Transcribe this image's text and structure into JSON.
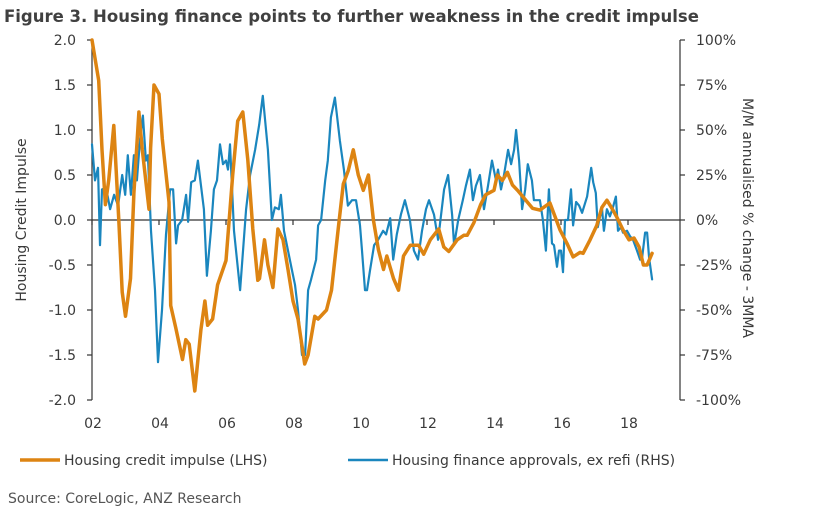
{
  "chart_data": {
    "type": "line",
    "title": "Figure 3. Housing finance points to further weakness in the credit impulse",
    "source": "Source: CoreLogic, ANZ Research",
    "ylabel_left": "Housing Credit Impulse",
    "ylabel_right": "M/M annualised % change - 3MMA",
    "xlim": [
      2002,
      2019.5
    ],
    "ylim_left": [
      -2.0,
      2.0
    ],
    "ylim_right": [
      -100,
      100
    ],
    "x_ticks": [
      "02",
      "04",
      "06",
      "08",
      "10",
      "12",
      "14",
      "16",
      "18"
    ],
    "x_tick_values": [
      2002,
      2004,
      2006,
      2008,
      2010,
      2012,
      2014,
      2016,
      2018
    ],
    "y_left_ticks": [
      "2.0",
      "1.5",
      "1.0",
      "0.5",
      "0.0",
      "-0.5",
      "-1.0",
      "-1.5",
      "-2.0"
    ],
    "y_right_ticks": [
      "100%",
      "75%",
      "50%",
      "25%",
      "0%",
      "-25%",
      "-50%",
      "-75%",
      "-100%"
    ],
    "grid": false,
    "legend_placement": "bottom",
    "series": [
      {
        "name": "Housing credit impulse (LHS)",
        "axis": "left",
        "color": "#DD8412",
        "x": [
          2002.0,
          2002.2,
          2002.3,
          2002.4,
          2002.5,
          2002.65,
          2002.8,
          2002.9,
          2003.0,
          2003.15,
          2003.25,
          2003.4,
          2003.5,
          2003.7,
          2003.75,
          2003.85,
          2004.0,
          2004.1,
          2004.3,
          2004.35,
          2004.5,
          2004.7,
          2004.8,
          2004.9,
          2005.07,
          2005.25,
          2005.37,
          2005.45,
          2005.6,
          2005.75,
          2006.0,
          2006.2,
          2006.35,
          2006.5,
          2006.65,
          2006.8,
          2006.95,
          2007.0,
          2007.15,
          2007.25,
          2007.4,
          2007.55,
          2007.7,
          2007.85,
          2008.0,
          2008.15,
          2008.35,
          2008.45,
          2008.65,
          2008.75,
          2009.0,
          2009.15,
          2009.35,
          2009.5,
          2009.65,
          2009.8,
          2009.95,
          2010.1,
          2010.25,
          2010.4,
          2010.55,
          2010.7,
          2010.8,
          2011.0,
          2011.15,
          2011.3,
          2011.5,
          2011.75,
          2011.9,
          2012.1,
          2012.35,
          2012.5,
          2012.65,
          2012.9,
          2013.1,
          2013.2,
          2013.4,
          2013.6,
          2013.75,
          2014.0,
          2014.1,
          2014.25,
          2014.4,
          2014.55,
          2014.7,
          2014.95,
          2015.15,
          2015.37,
          2015.67,
          2015.97,
          2016.18,
          2016.36,
          2016.57,
          2016.66,
          2016.87,
          2017.07,
          2017.22,
          2017.37,
          2017.52,
          2017.67,
          2017.85,
          2018.03,
          2018.18,
          2018.33,
          2018.46,
          2018.57,
          2018.72
        ],
        "y": [
          2.0,
          1.55,
          0.78,
          0.17,
          0.45,
          1.05,
          0,
          -0.8,
          -1.07,
          -0.65,
          0.3,
          1.2,
          0.78,
          0.12,
          0.8,
          1.5,
          1.4,
          0.9,
          0.2,
          -0.95,
          -1.2,
          -1.55,
          -1.33,
          -1.38,
          -1.9,
          -1.22,
          -0.9,
          -1.17,
          -1.1,
          -0.72,
          -0.45,
          0.5,
          1.1,
          1.2,
          0.67,
          -0.1,
          -0.67,
          -0.65,
          -0.22,
          -0.5,
          -0.75,
          -0.1,
          -0.22,
          -0.55,
          -0.9,
          -1.1,
          -1.6,
          -1.5,
          -1.07,
          -1.1,
          -1.0,
          -0.78,
          -0.1,
          0.4,
          0.55,
          0.78,
          0.5,
          0.33,
          0.5,
          0,
          -0.33,
          -0.55,
          -0.4,
          -0.65,
          -0.78,
          -0.4,
          -0.28,
          -0.28,
          -0.38,
          -0.22,
          -0.1,
          -0.3,
          -0.35,
          -0.22,
          -0.17,
          -0.17,
          -0.03,
          0.17,
          0.28,
          0.33,
          0.5,
          0.44,
          0.53,
          0.39,
          0.33,
          0.22,
          0.13,
          0.11,
          0.19,
          -0.11,
          -0.26,
          -0.41,
          -0.36,
          -0.37,
          -0.22,
          -0.06,
          0.14,
          0.22,
          0.13,
          0.03,
          -0.11,
          -0.22,
          -0.2,
          -0.3,
          -0.5,
          -0.5,
          -0.37
        ]
      },
      {
        "name": "Housing finance approvals, ex refi (RHS)",
        "axis": "right",
        "color": "#1A86BE",
        "x": [
          2002.0,
          2002.09,
          2002.18,
          2002.24,
          2002.3,
          2002.42,
          2002.54,
          2002.66,
          2002.78,
          2002.9,
          2002.99,
          2003.07,
          2003.16,
          2003.25,
          2003.34,
          2003.43,
          2003.52,
          2003.61,
          2003.67,
          2003.76,
          2003.88,
          2003.97,
          2004.09,
          2004.21,
          2004.33,
          2004.42,
          2004.51,
          2004.57,
          2004.69,
          2004.81,
          2004.87,
          2004.96,
          2005.07,
          2005.16,
          2005.34,
          2005.43,
          2005.55,
          2005.64,
          2005.73,
          2005.82,
          2005.91,
          2006.0,
          2006.06,
          2006.12,
          2006.24,
          2006.42,
          2006.6,
          2006.72,
          2006.87,
          2006.99,
          2007.1,
          2007.25,
          2007.37,
          2007.46,
          2007.58,
          2007.64,
          2007.73,
          2007.85,
          2007.97,
          2008.06,
          2008.15,
          2008.27,
          2008.36,
          2008.45,
          2008.54,
          2008.69,
          2008.75,
          2008.84,
          2008.96,
          2009.04,
          2009.13,
          2009.25,
          2009.4,
          2009.52,
          2009.64,
          2009.76,
          2009.88,
          2010.0,
          2010.06,
          2010.15,
          2010.21,
          2010.3,
          2010.42,
          2010.54,
          2010.69,
          2010.78,
          2010.9,
          2010.99,
          2011.1,
          2011.22,
          2011.34,
          2011.49,
          2011.61,
          2011.73,
          2011.85,
          2011.97,
          2012.06,
          2012.21,
          2012.33,
          2012.42,
          2012.51,
          2012.63,
          2012.75,
          2012.81,
          2012.93,
          2013.07,
          2013.16,
          2013.28,
          2013.37,
          2013.46,
          2013.58,
          2013.7,
          2013.82,
          2013.94,
          2014.06,
          2014.12,
          2014.21,
          2014.3,
          2014.42,
          2014.51,
          2014.6,
          2014.66,
          2014.75,
          2014.84,
          2014.93,
          2015.01,
          2015.13,
          2015.19,
          2015.37,
          2015.46,
          2015.55,
          2015.64,
          2015.73,
          2015.79,
          2015.88,
          2015.94,
          2016.0,
          2016.06,
          2016.12,
          2016.21,
          2016.3,
          2016.36,
          2016.45,
          2016.54,
          2016.63,
          2016.78,
          2016.9,
          2016.96,
          2017.04,
          2017.1,
          2017.22,
          2017.28,
          2017.37,
          2017.46,
          2017.55,
          2017.64,
          2017.7,
          2017.79,
          2017.85,
          2017.97,
          2018.06,
          2018.15,
          2018.27,
          2018.36,
          2018.42,
          2018.51,
          2018.57,
          2018.63,
          2018.72
        ],
        "y": [
          42,
          22,
          29,
          -14,
          17,
          18,
          6,
          14,
          8,
          25,
          14,
          36,
          14,
          36,
          22,
          44,
          58,
          33,
          36,
          -6,
          -39,
          -79,
          -50,
          -8,
          17,
          17,
          -13,
          -3,
          0,
          14,
          -1,
          21,
          22,
          33,
          6,
          -31,
          -6,
          17,
          22,
          42,
          31,
          33,
          28,
          42,
          -6,
          -39,
          6,
          25,
          39,
          53,
          69,
          39,
          0,
          7,
          6,
          14,
          -6,
          -17,
          -28,
          -36,
          -50,
          -75,
          -75,
          -39,
          -33,
          -22,
          -3,
          0,
          22,
          33,
          57,
          68,
          44,
          28,
          8,
          11,
          11,
          -3,
          -17,
          -39,
          -39,
          -28,
          -14,
          -11,
          -6,
          -8,
          1,
          -22,
          -8,
          3,
          11,
          0,
          -17,
          -22,
          -6,
          6,
          11,
          3,
          -11,
          3,
          17,
          25,
          3,
          -14,
          0,
          11,
          19,
          28,
          11,
          19,
          25,
          6,
          19,
          33,
          22,
          28,
          17,
          25,
          39,
          31,
          39,
          50,
          33,
          6,
          17,
          31,
          22,
          11,
          11,
          0,
          -17,
          17,
          -13,
          -14,
          -26,
          -17,
          -17,
          -29,
          0,
          0,
          17,
          -3,
          10,
          8,
          4,
          13,
          29,
          21,
          15,
          -4,
          7,
          -6,
          6,
          2,
          7,
          13,
          -6,
          -4,
          -7,
          -6,
          -9,
          -11,
          -17,
          -22,
          -21,
          -7,
          -7,
          -21,
          -33
        ]
      }
    ]
  }
}
